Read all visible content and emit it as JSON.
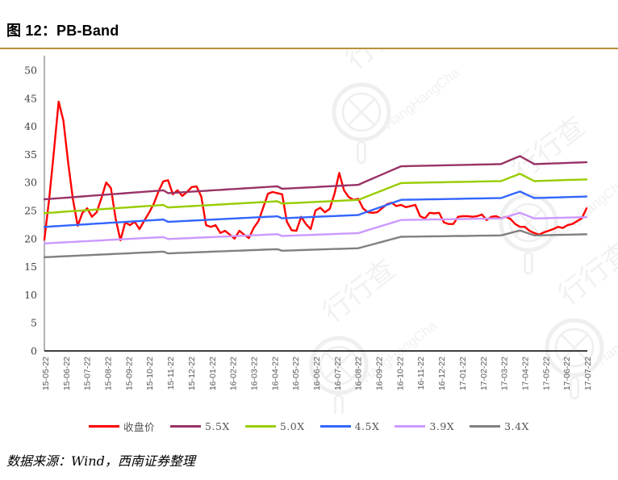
{
  "title": "图 12：PB-Band",
  "source_note": "数据来源：Wind，西南证券整理",
  "watermark": {
    "cn": "行行查",
    "en": "HangHangCha"
  },
  "colors": {
    "title_rule": "#b6923b",
    "axis_left": "#808080",
    "axis_bottom": "#000000",
    "y_tick_text": "#404040",
    "x_tick_text": "#595959"
  },
  "chart_data": {
    "type": "line",
    "title": "PB-Band",
    "xlabel": "",
    "ylabel": "",
    "ylim": [
      0,
      50
    ],
    "grid": false,
    "legend_position": "bottom",
    "y_ticks": [
      0,
      5,
      10,
      15,
      20,
      25,
      30,
      35,
      40,
      45,
      50
    ],
    "x_tick_labels": [
      "15-05-22",
      "15-06-22",
      "15-07-22",
      "15-08-22",
      "15-09-22",
      "15-10-22",
      "15-11-22",
      "15-12-22",
      "16-01-22",
      "16-02-22",
      "16-03-22",
      "16-04-22",
      "16-05-22",
      "16-06-22",
      "16-07-22",
      "16-08-22",
      "16-09-22",
      "16-10-22",
      "16-11-22",
      "16-12-22",
      "17-01-22",
      "17-02-22",
      "17-03-22",
      "17-04-22",
      "17-05-22",
      "17-06-22",
      "17-07-22"
    ],
    "x_frequency": "weekly",
    "series": [
      {
        "name": "收盘价",
        "slug": "close-price",
        "color": "#ff0000",
        "type": "price",
        "values": [
          19.8,
          27,
          35.5,
          44.4,
          41,
          33.5,
          27,
          22.3,
          24.6,
          25.4,
          23.9,
          24.7,
          27.2,
          30,
          29,
          23.5,
          19.7,
          22.9,
          22.4,
          23,
          21.7,
          23.2,
          24.6,
          26.2,
          28.4,
          30.2,
          30.4,
          27.9,
          28.6,
          27.6,
          28.3,
          29.2,
          29.3,
          27.5,
          22.4,
          22.1,
          22.4,
          21,
          21.4,
          20.7,
          20,
          21.4,
          20.7,
          20.1,
          21.9,
          23.1,
          25.5,
          28,
          28.3,
          28.1,
          27.9,
          23,
          21.5,
          21.4,
          23.9,
          22.6,
          21.7,
          25,
          25.5,
          24.7,
          25.3,
          28,
          31.7,
          28.6,
          27.4,
          26.9,
          27.1,
          25.4,
          24.7,
          24.6,
          24.7,
          25.4,
          26.1,
          26.4,
          25.8,
          26,
          25.6,
          25.8,
          26,
          24,
          23.6,
          24.6,
          24.5,
          24.6,
          22.9,
          22.6,
          22.6,
          23.9,
          24,
          24,
          23.9,
          24,
          24.3,
          23.3,
          23.9,
          24,
          23.6,
          23.9,
          23.5,
          22.6,
          22.1,
          22.1,
          21.4,
          21,
          20.7,
          21.1,
          21.4,
          21.7,
          22.1,
          21.9,
          22.4,
          22.6,
          23.1,
          23.6,
          25.4
        ]
      },
      {
        "name": "5.5X",
        "slug": "5-5x",
        "color": "#993366",
        "type": "band",
        "multiple": 5.5
      },
      {
        "name": "5.0X",
        "slug": "5-0x",
        "color": "#99cc00",
        "type": "band",
        "multiple": 5.0
      },
      {
        "name": "4.5X",
        "slug": "4-5x",
        "color": "#3366ff",
        "type": "band",
        "multiple": 4.5
      },
      {
        "name": "3.9X",
        "slug": "3-9x",
        "color": "#cc99ff",
        "type": "band",
        "multiple": 3.9
      },
      {
        "name": "3.4X",
        "slug": "3-4x",
        "color": "#808080",
        "type": "band",
        "multiple": 3.4
      }
    ],
    "bps_anchors": {
      "weeks": [
        0,
        25,
        26,
        49,
        50,
        66,
        75,
        96,
        100,
        103,
        114
      ],
      "values": [
        4.909,
        5.2,
        5.11,
        5.33,
        5.25,
        5.38,
        5.98,
        6.05,
        6.31,
        6.05,
        6.11
      ]
    }
  }
}
